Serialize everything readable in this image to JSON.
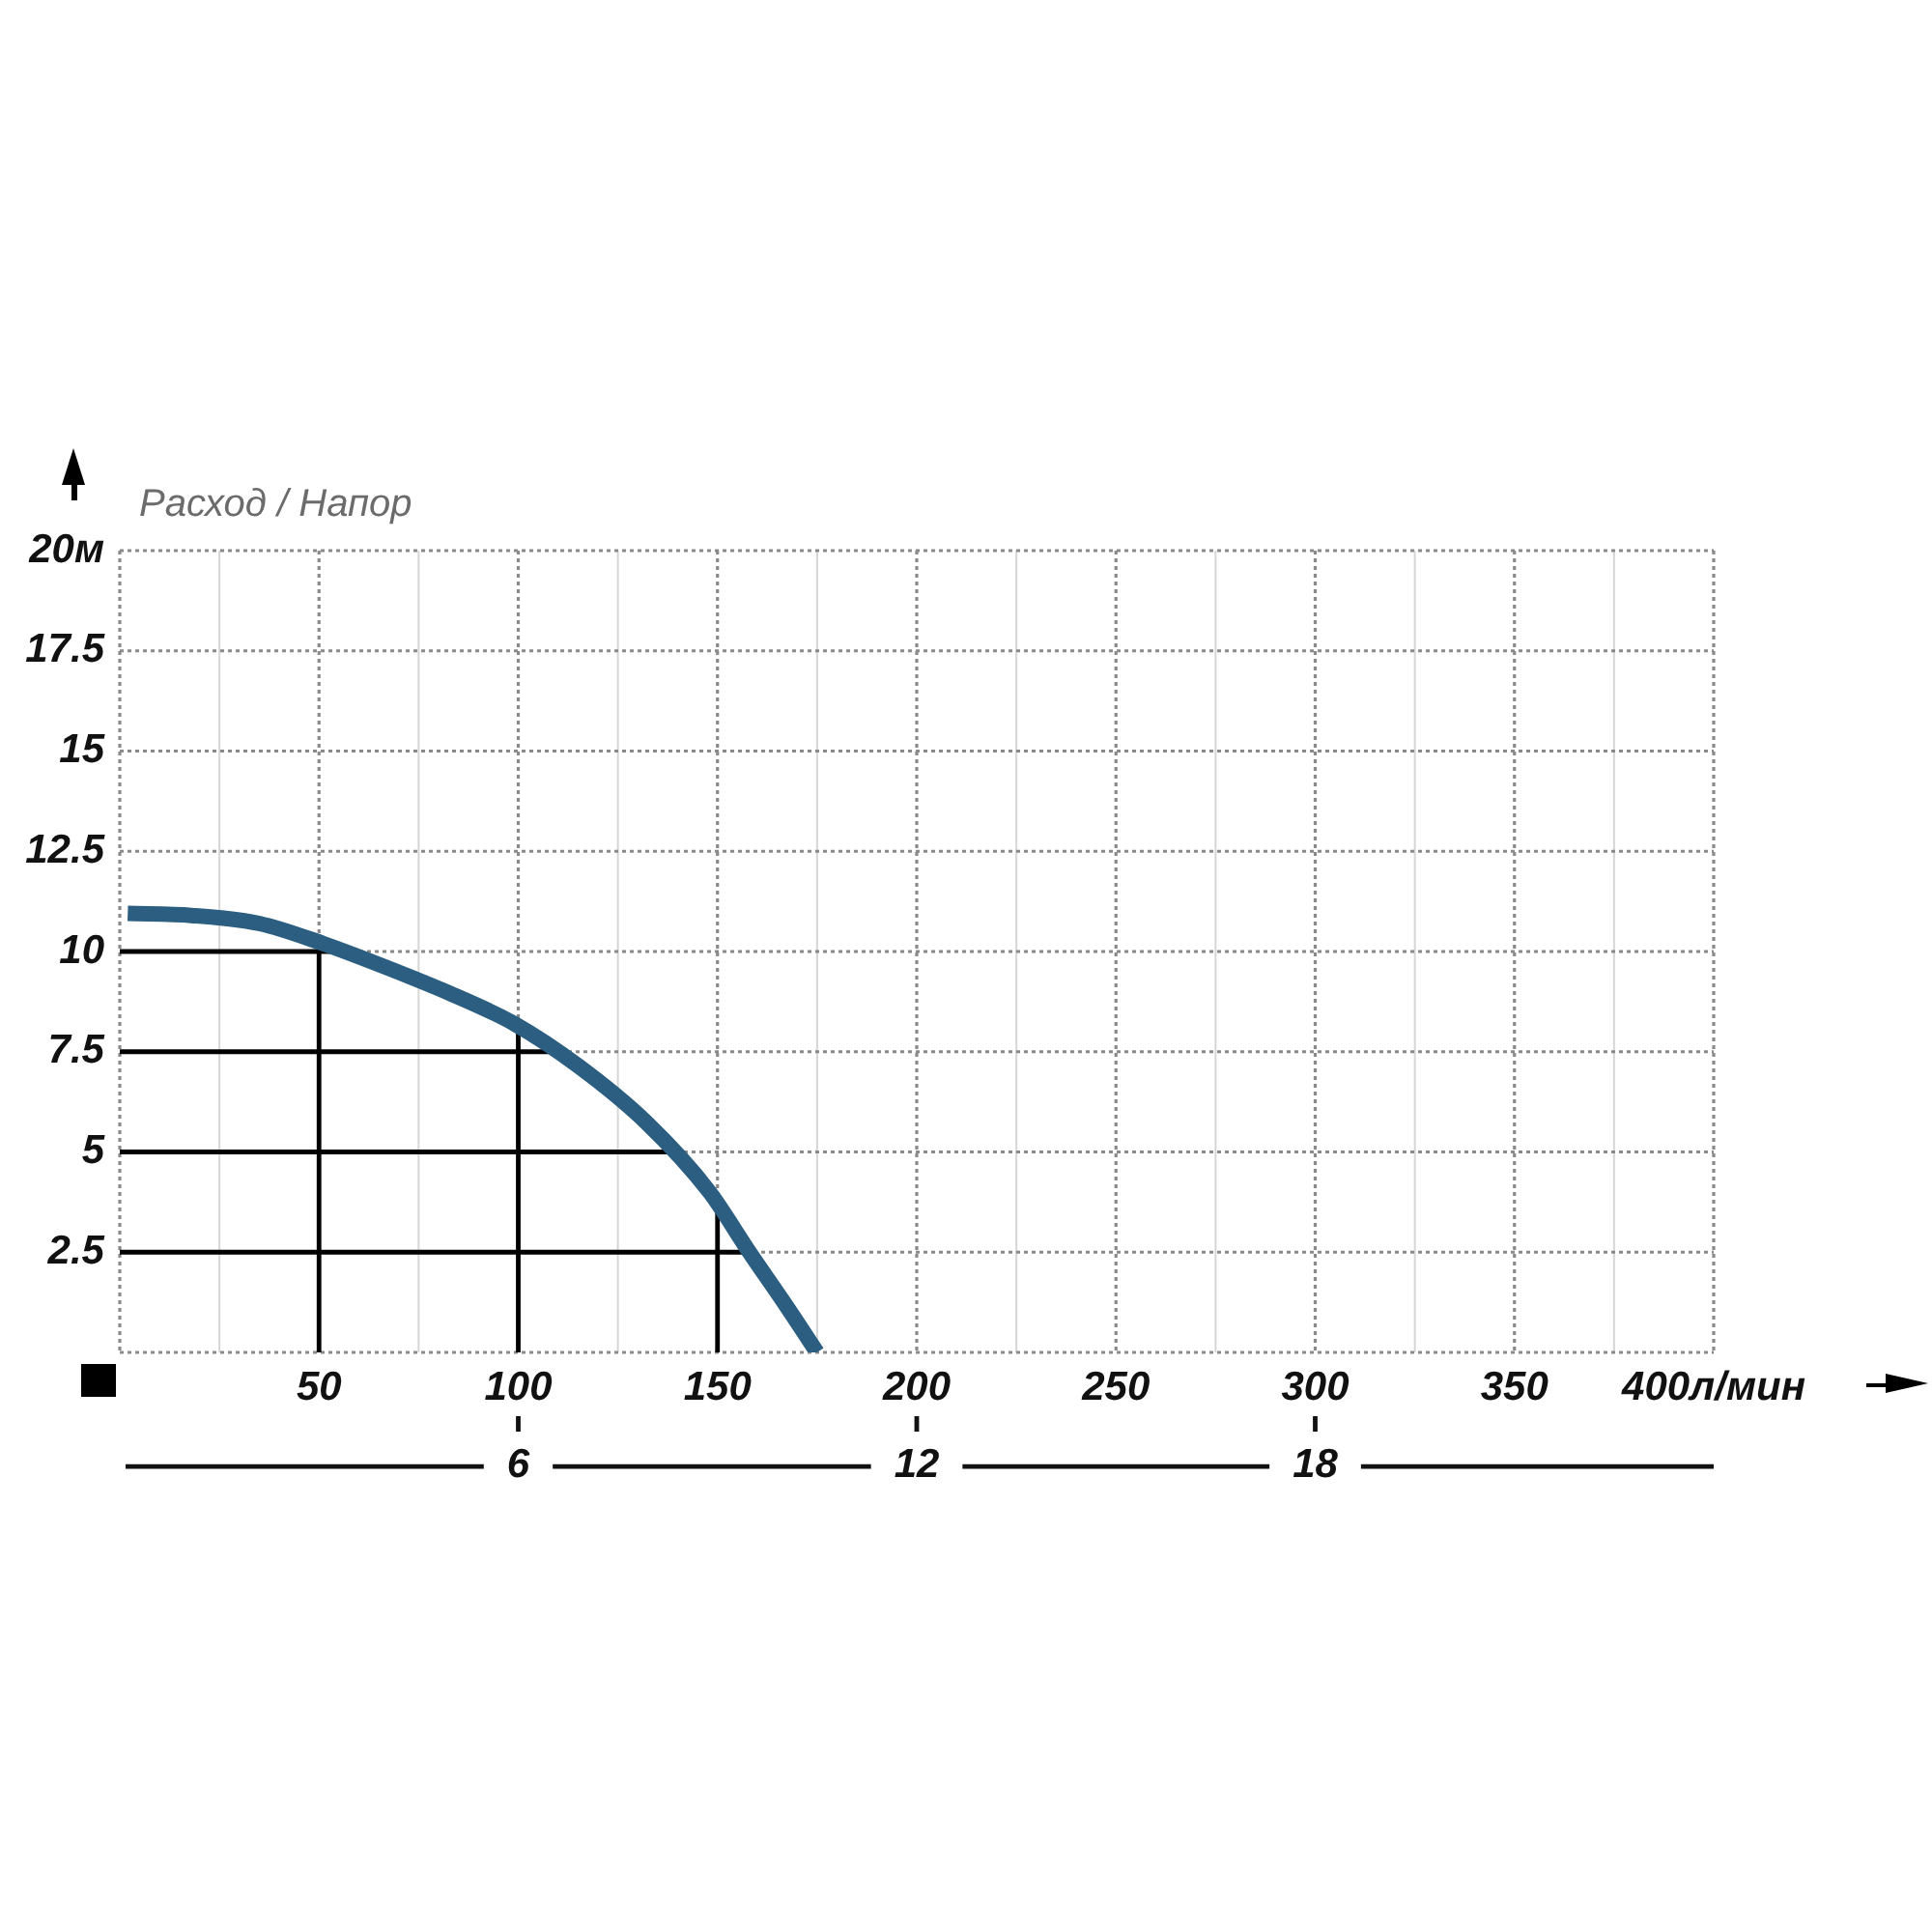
{
  "chart_data": {
    "type": "line",
    "title": "Расход / Напор",
    "xlim": [
      0,
      400
    ],
    "xticks": [
      {
        "value": 0,
        "label": null
      },
      {
        "value": 25,
        "label": null
      },
      50,
      {
        "value": 75,
        "label": null
      },
      100,
      {
        "value": 125,
        "label": null
      },
      150,
      {
        "value": 175,
        "label": null
      },
      200,
      {
        "value": 225,
        "label": null
      },
      250,
      {
        "value": 275,
        "label": null
      },
      300,
      {
        "value": 325,
        "label": null
      },
      350,
      {
        "value": 375,
        "label": null
      },
      {
        "value": 400,
        "label": "400л/мин"
      }
    ],
    "x2lim": [
      0,
      24
    ],
    "x2ticks": [
      6,
      12,
      18
    ],
    "ylim": [
      0,
      20
    ],
    "yticks": [
      {
        "value": 0,
        "label": null
      },
      2.5,
      5,
      7.5,
      10,
      12.5,
      15,
      17.5,
      {
        "value": 20,
        "label": "20м"
      }
    ],
    "grid": true,
    "ref_lines": [
      {
        "axis": "y",
        "value": 10,
        "color": "#000000"
      },
      {
        "axis": "y",
        "value": 7.5,
        "color": "#000000"
      },
      {
        "axis": "y",
        "value": 5,
        "color": "#000000"
      },
      {
        "axis": "y",
        "value": 2.5,
        "color": "#000000"
      },
      {
        "axis": "x",
        "value": 50,
        "color": "#000000"
      },
      {
        "axis": "x",
        "value": 100,
        "color": "#000000"
      },
      {
        "axis": "x",
        "value": 150,
        "color": "#000000"
      }
    ],
    "series": [
      {
        "color": "#2b5e80",
        "x": [
          2,
          18,
          35,
          51,
          67,
          83,
          99,
          115,
          132,
          148,
          158,
          167,
          175
        ],
        "values": [
          10.95,
          10.9,
          10.7,
          10.2,
          9.6,
          8.95,
          8.2,
          7.15,
          5.75,
          4.0,
          2.5,
          1.2,
          0
        ]
      }
    ]
  }
}
